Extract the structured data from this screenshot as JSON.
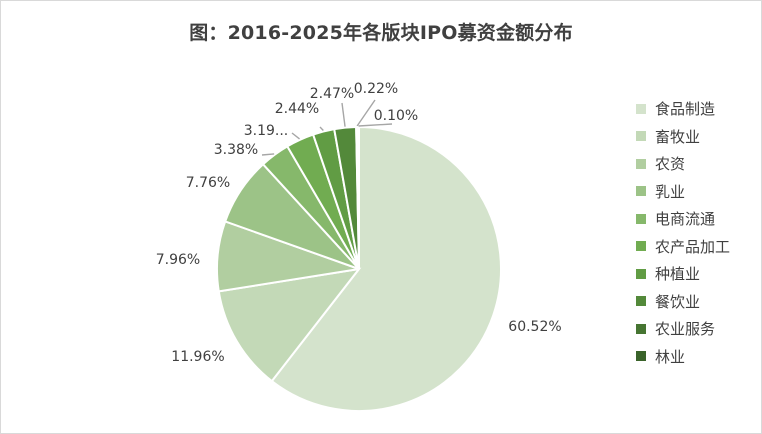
{
  "chart_data": {
    "type": "pie",
    "title": "图：2016-2025年各版块IPO募资金额分布",
    "legend_position": "right",
    "slices": [
      {
        "name": "食品制造",
        "value": 60.52,
        "label": "60.52%",
        "color": "#d4e3cc"
      },
      {
        "name": "畜牧业",
        "value": 11.96,
        "label": "11.96%",
        "color": "#c3d9b7"
      },
      {
        "name": "农资",
        "value": 7.96,
        "label": "7.96%",
        "color": "#b1cea0"
      },
      {
        "name": "乳业",
        "value": 7.76,
        "label": "7.76%",
        "color": "#9cc387"
      },
      {
        "name": "电商流通",
        "value": 3.38,
        "label": "3.38%",
        "color": "#86b86b"
      },
      {
        "name": "农产品加工",
        "value": 3.19,
        "label": "3.19...",
        "color": "#71ac51"
      },
      {
        "name": "种植业",
        "value": 2.44,
        "label": "2.44%",
        "color": "#619c44"
      },
      {
        "name": "餐饮业",
        "value": 2.47,
        "label": "2.47%",
        "color": "#53893a"
      },
      {
        "name": "农业服务",
        "value": 0.22,
        "label": "0.22%",
        "color": "#467532"
      },
      {
        "name": "林业",
        "value": 0.1,
        "label": "0.10%",
        "color": "#3a632a"
      }
    ]
  }
}
